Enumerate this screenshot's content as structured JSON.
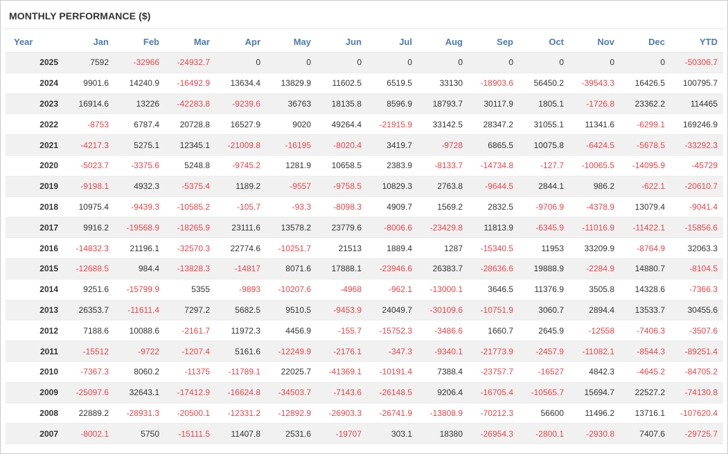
{
  "title": "MONTHLY PERFORMANCE ($)",
  "colors": {
    "negative": "#e8444a",
    "header": "#4b7bb3",
    "stripe": "#f1f1f1"
  },
  "chart_data": {
    "type": "table",
    "title": "MONTHLY PERFORMANCE ($)",
    "columns": [
      "Year",
      "Jan",
      "Feb",
      "Mar",
      "Apr",
      "May",
      "Jun",
      "Jul",
      "Aug",
      "Sep",
      "Oct",
      "Nov",
      "Dec",
      "YTD"
    ],
    "rows": [
      [
        "2025",
        "7592",
        "-32966",
        "-24932.7",
        "0",
        "0",
        "0",
        "0",
        "0",
        "0",
        "0",
        "0",
        "0",
        "-50306.7"
      ],
      [
        "2024",
        "9901.6",
        "14240.9",
        "-16492.9",
        "13634.4",
        "13829.9",
        "11602.5",
        "6519.5",
        "33130",
        "-18903.6",
        "56450.2",
        "-39543.3",
        "16426.5",
        "100795.7"
      ],
      [
        "2023",
        "16914.6",
        "13226",
        "-42283.8",
        "-9239.6",
        "36763",
        "18135.8",
        "8596.9",
        "18793.7",
        "30117.9",
        "1805.1",
        "-1726.8",
        "23362.2",
        "114465"
      ],
      [
        "2022",
        "-8753",
        "6787.4",
        "20728.8",
        "16527.9",
        "9020",
        "49264.4",
        "-21915.9",
        "33142.5",
        "28347.2",
        "31055.1",
        "11341.6",
        "-6299.1",
        "169246.9"
      ],
      [
        "2021",
        "-4217.3",
        "5275.1",
        "12345.1",
        "-21009.8",
        "-16195",
        "-8020.4",
        "3419.7",
        "-9728",
        "6865.5",
        "10075.8",
        "-6424.5",
        "-5678.5",
        "-33292.3"
      ],
      [
        "2020",
        "-5023.7",
        "-3375.6",
        "5248.8",
        "-9745.2",
        "1281.9",
        "10658.5",
        "2383.9",
        "-8133.7",
        "-14734.8",
        "-127.7",
        "-10065.5",
        "-14095.9",
        "-45729"
      ],
      [
        "2019",
        "-9198.1",
        "4932.3",
        "-5375.4",
        "1189.2",
        "-9557",
        "-9758.5",
        "10829.3",
        "2763.8",
        "-9644.5",
        "2844.1",
        "986.2",
        "-622.1",
        "-20610.7"
      ],
      [
        "2018",
        "10975.4",
        "-9439.3",
        "-10585.2",
        "-105.7",
        "-93.3",
        "-8098.3",
        "4909.7",
        "1569.2",
        "2832.5",
        "-9706.9",
        "-4378.9",
        "13079.4",
        "-9041.4"
      ],
      [
        "2017",
        "9916.2",
        "-19568.9",
        "-18265.9",
        "23111.6",
        "13578.2",
        "23779.6",
        "-8006.6",
        "-23429.8",
        "11813.9",
        "-6345.9",
        "-11016.9",
        "-11422.1",
        "-15856.6"
      ],
      [
        "2016",
        "-14832.3",
        "21196.1",
        "-32570.3",
        "22774.6",
        "-10251.7",
        "21513",
        "1889.4",
        "1287",
        "-15340.5",
        "11953",
        "33209.9",
        "-8764.9",
        "32063.3"
      ],
      [
        "2015",
        "-12688.5",
        "984.4",
        "-13828.3",
        "-14817",
        "8071.6",
        "17888.1",
        "-23946.6",
        "26383.7",
        "-28636.6",
        "19888.9",
        "-2284.9",
        "14880.7",
        "-8104.5"
      ],
      [
        "2014",
        "9251.6",
        "-15799.9",
        "5355",
        "-9893",
        "-10207.6",
        "-4968",
        "-962.1",
        "-13000.1",
        "3646.5",
        "11376.9",
        "3505.8",
        "14328.6",
        "-7366.3"
      ],
      [
        "2013",
        "26353.7",
        "-11611.4",
        "7297.2",
        "5682.5",
        "9510.5",
        "-9453.9",
        "24049.7",
        "-30109.6",
        "-10751.9",
        "3060.7",
        "2894.4",
        "13533.7",
        "30455.6"
      ],
      [
        "2012",
        "7188.6",
        "10088.6",
        "-2161.7",
        "11972.3",
        "4456.9",
        "-155.7",
        "-15752.3",
        "-3486.6",
        "1660.7",
        "2645.9",
        "-12558",
        "-7406.3",
        "-3507.6"
      ],
      [
        "2011",
        "-15512",
        "-9722",
        "-1207.4",
        "5161.6",
        "-12249.9",
        "-2176.1",
        "-347.3",
        "-9340.1",
        "-21773.9",
        "-2457.9",
        "-11082.1",
        "-8544.3",
        "-89251.4"
      ],
      [
        "2010",
        "-7367.3",
        "8060.2",
        "-11375",
        "-11789.1",
        "22025.7",
        "-41369.1",
        "-10191.4",
        "7388.4",
        "-23757.7",
        "-16527",
        "4842.3",
        "-4645.2",
        "-84705.2"
      ],
      [
        "2009",
        "-25097.6",
        "32643.1",
        "-17412.9",
        "-16624.8",
        "-34503.7",
        "-7143.6",
        "-26148.5",
        "9206.4",
        "-16705.4",
        "-10565.7",
        "15694.7",
        "22527.2",
        "-74130.8"
      ],
      [
        "2008",
        "22889.2",
        "-28931.3",
        "-20500.1",
        "-12331.2",
        "-12892.9",
        "-26903.3",
        "-26741.9",
        "-13808.9",
        "-70212.3",
        "56600",
        "11496.2",
        "13716.1",
        "-107620.4"
      ],
      [
        "2007",
        "-8002.1",
        "5750",
        "-15111.5",
        "11407.8",
        "2531.6",
        "-19707",
        "303.1",
        "18380",
        "-26954.3",
        "-2800.1",
        "-2930.8",
        "7407.6",
        "-29725.7"
      ]
    ]
  }
}
